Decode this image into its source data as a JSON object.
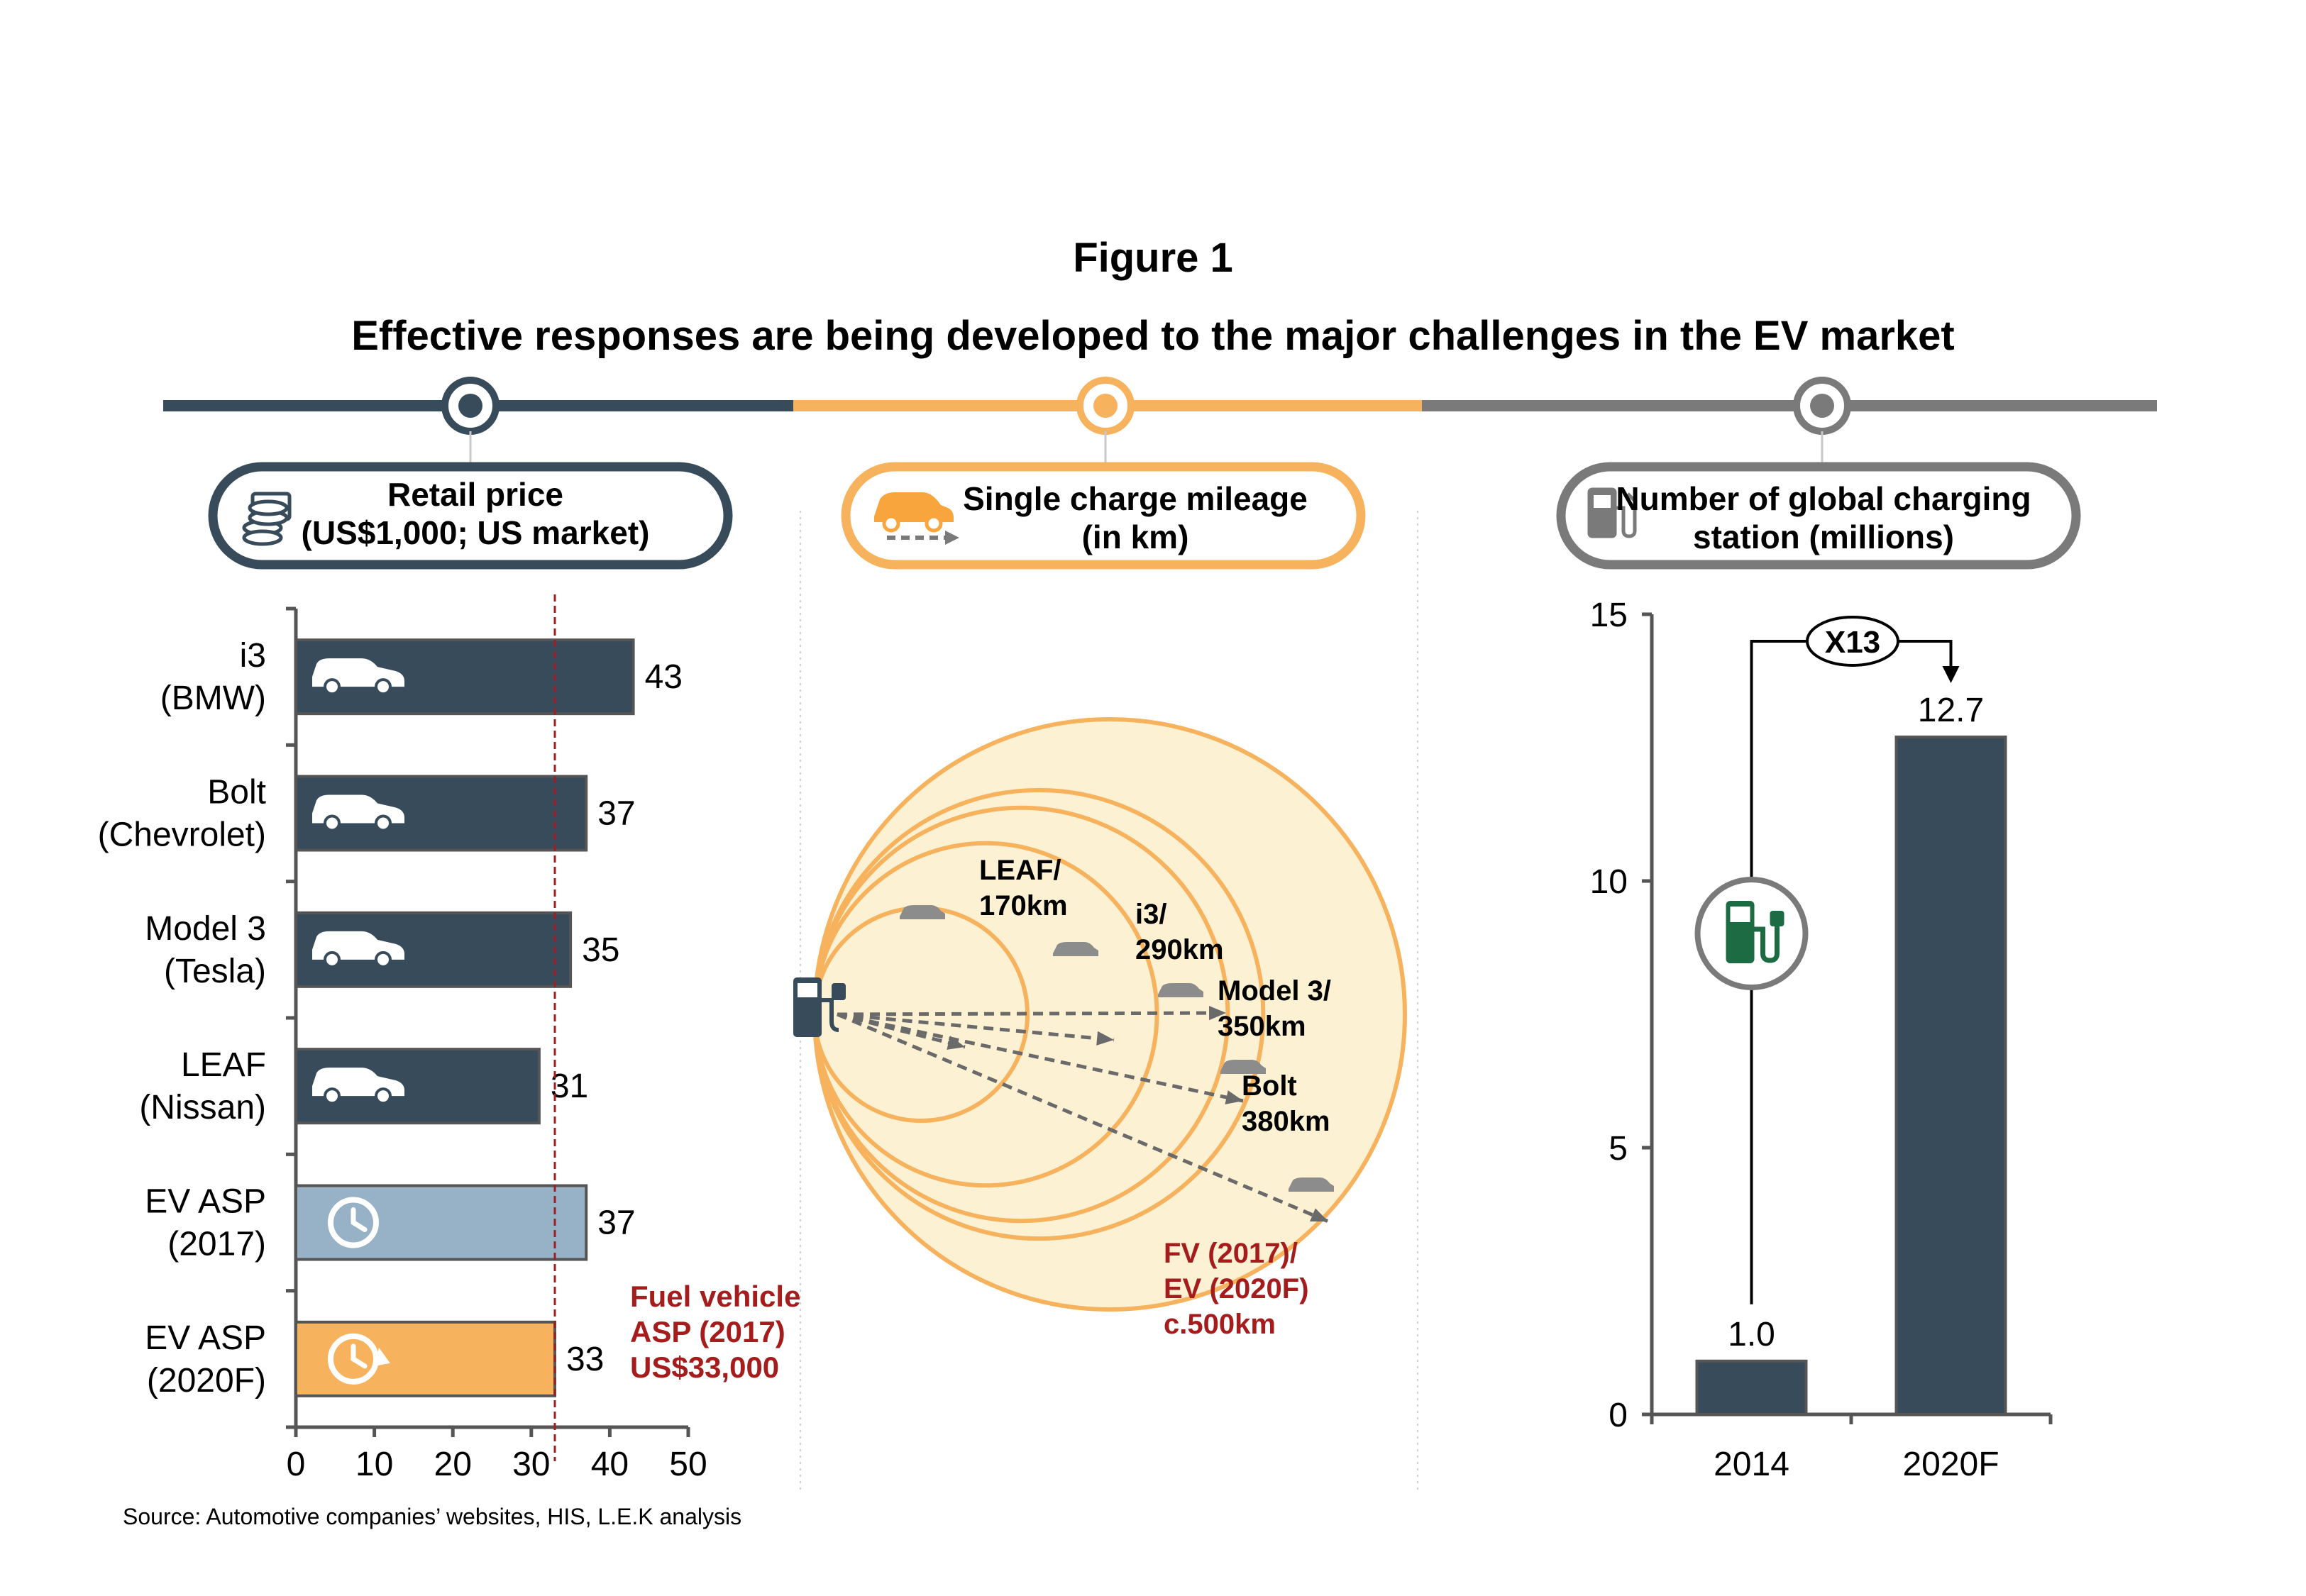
{
  "figure_label": "Figure 1",
  "title": "Effective responses are being developed to the major challenges in the EV market",
  "source": "Source: Automotive companies’ websites, HIS, L.E.K analysis",
  "colors": {
    "navy": "#374B5A",
    "orange": "#F7B25D",
    "gray": "#7A7A7A",
    "light_blue": "#97B1C6",
    "dark_red": "#A51C1C",
    "circle_fill": "#FDF1D3",
    "green": "#1D6B43"
  },
  "sections": {
    "price": {
      "line1": "Retail price",
      "line2": "(US$1,000; US market)",
      "icon": "money-stack-icon"
    },
    "mileage": {
      "line1": "Single charge mileage",
      "line2": "(in km)",
      "icon": "car-arrow-icon"
    },
    "stations": {
      "line1": "Number of global charging",
      "line2": "station (millions)",
      "icon": "fuel-pump-icon"
    }
  },
  "chart_data": [
    {
      "type": "bar",
      "orientation": "horizontal",
      "categories": [
        {
          "line1": "i3",
          "line2": "(BMW)"
        },
        {
          "line1": "Bolt",
          "line2": "(Chevrolet)"
        },
        {
          "line1": "Model 3",
          "line2": "(Tesla)"
        },
        {
          "line1": "LEAF",
          "line2": "(Nissan)"
        },
        {
          "line1": "EV ASP",
          "line2": "(2017)"
        },
        {
          "line1": "EV ASP",
          "line2": "(2020F)"
        }
      ],
      "values": [
        43,
        37,
        35,
        31,
        37,
        33
      ],
      "bar_colors": [
        "#374B5A",
        "#374B5A",
        "#374B5A",
        "#374B5A",
        "#97B1C6",
        "#F7B25D"
      ],
      "icons": [
        "car-icon",
        "car-icon",
        "car-icon",
        "car-icon",
        "clock-icon",
        "clock-arrow-icon"
      ],
      "xlim": [
        0,
        50
      ],
      "xticks": [
        0,
        10,
        20,
        30,
        40,
        50
      ],
      "reference_line": {
        "value": 33,
        "label_lines": [
          "Fuel vehicle",
          "ASP (2017)",
          "US$33,000"
        ]
      }
    },
    {
      "type": "other",
      "description_free": true,
      "rings": [
        {
          "label_lines": [
            "LEAF/",
            "170km"
          ],
          "value_km": 170
        },
        {
          "label_lines": [
            "i3/",
            "290km"
          ],
          "value_km": 290
        },
        {
          "label_lines": [
            "Model 3/",
            "350km"
          ],
          "value_km": 350
        },
        {
          "label_lines": [
            "Bolt",
            "380km"
          ],
          "value_km": 380
        },
        {
          "label_lines": [
            "FV (2017)/",
            "EV (2020F)",
            "c.500km"
          ],
          "value_km": 500
        }
      ]
    },
    {
      "type": "bar",
      "categories": [
        "2014",
        "2020F"
      ],
      "values": [
        1.0,
        12.7
      ],
      "value_labels": [
        "1.0",
        "12.7"
      ],
      "ylim": [
        0,
        15
      ],
      "yticks": [
        0,
        5,
        10,
        15
      ],
      "growth_label": "X13"
    }
  ]
}
